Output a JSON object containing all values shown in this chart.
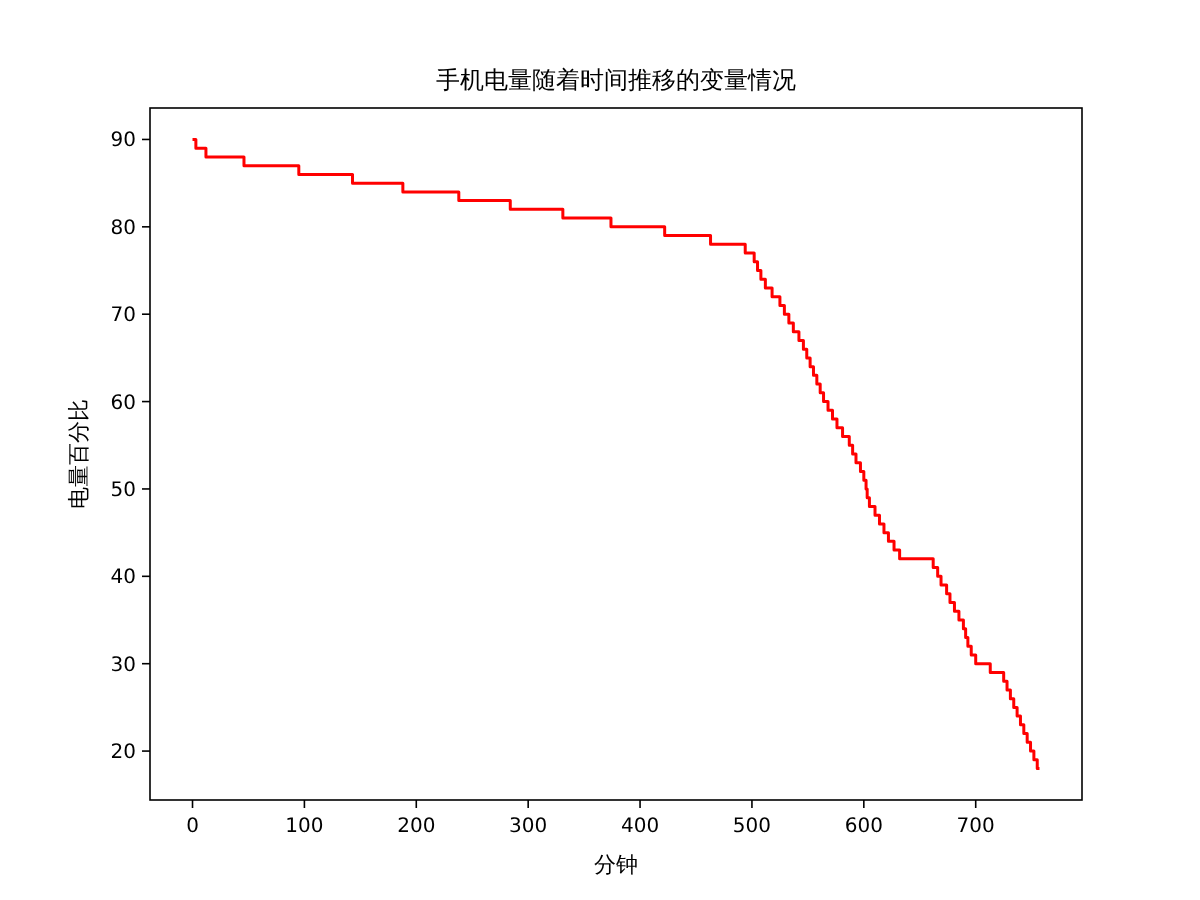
{
  "chart_data": {
    "type": "step",
    "title": "手机电量随着时间推移的变量情况",
    "xlabel": "分钟",
    "ylabel": "电量百分比",
    "xlim": [
      -38,
      795
    ],
    "xticks": [
      0,
      100,
      200,
      300,
      400,
      500,
      600,
      700
    ],
    "ylim": [
      14.4,
      93.6
    ],
    "yticks": [
      20,
      30,
      40,
      50,
      60,
      70,
      80,
      90
    ],
    "grid": false,
    "series": [
      {
        "color": "#ff0000",
        "x": [
          0,
          3,
          12,
          46,
          95,
          143,
          188,
          238,
          284,
          331,
          374,
          422,
          463,
          494,
          502,
          505,
          508,
          512,
          518,
          525,
          529,
          533,
          537,
          542,
          546,
          549,
          552,
          555,
          558,
          561,
          564,
          568,
          572,
          576,
          581,
          587,
          590,
          593,
          597,
          600,
          602,
          603,
          605,
          610,
          614,
          618,
          622,
          627,
          632,
          662,
          666,
          669,
          674,
          677,
          681,
          685,
          689,
          691,
          693,
          696,
          700,
          713,
          725,
          728,
          731,
          734,
          737,
          740,
          743,
          746,
          749,
          752,
          755,
          757
        ],
        "values": [
          90,
          89,
          88,
          87,
          86,
          85,
          84,
          83,
          82,
          81,
          80,
          79,
          78,
          77,
          76,
          75,
          74,
          73,
          72,
          71,
          70,
          69,
          68,
          67,
          66,
          65,
          64,
          63,
          62,
          61,
          60,
          59,
          58,
          57,
          56,
          55,
          54,
          53,
          52,
          51,
          50,
          49,
          48,
          47,
          46,
          45,
          44,
          43,
          42,
          41,
          40,
          39,
          38,
          37,
          36,
          35,
          34,
          33,
          32,
          31,
          30,
          29,
          28,
          27,
          26,
          25,
          24,
          23,
          22,
          21,
          20,
          19,
          18,
          18
        ]
      }
    ]
  }
}
